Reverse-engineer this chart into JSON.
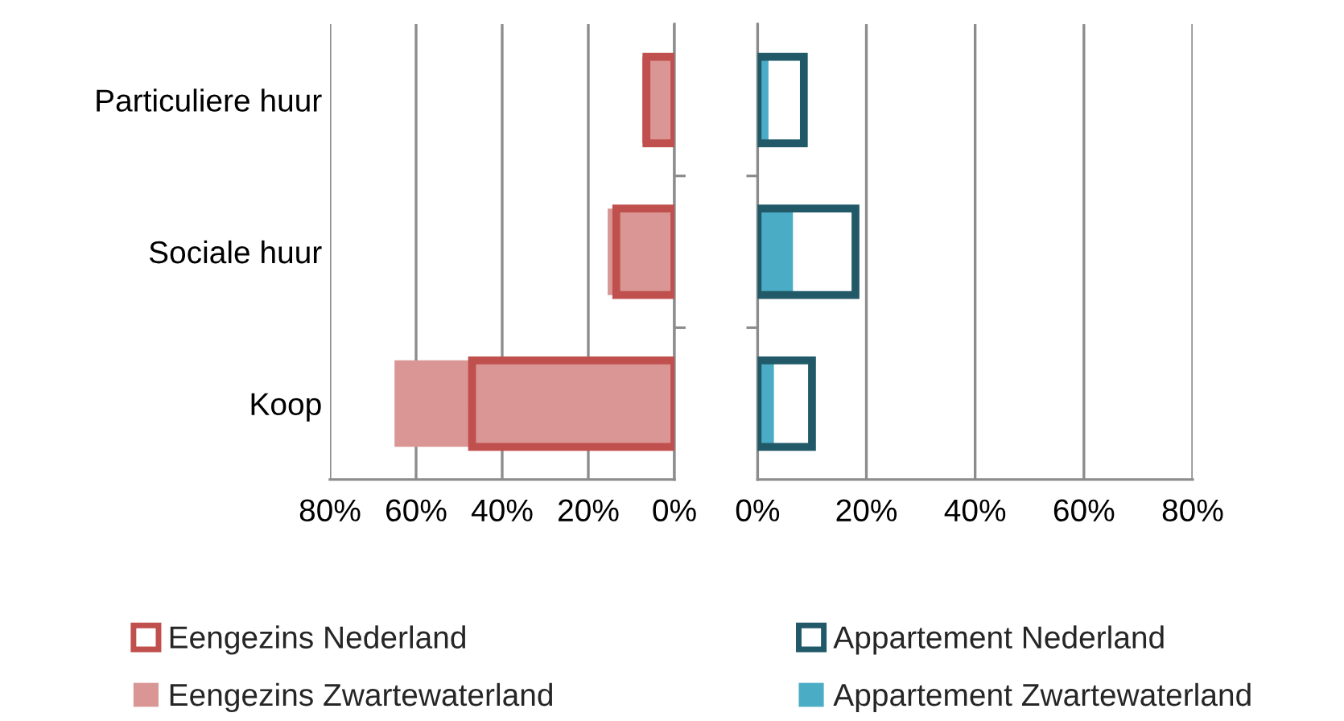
{
  "chart_data": [
    {
      "type": "bar",
      "orientation": "horizontal",
      "categories": [
        "Particuliere huur",
        "Sociale huur",
        "Koop"
      ],
      "series": [
        {
          "name": "Eengezins Nederland",
          "color": "#c0504d",
          "values": [
            6.5,
            13.5,
            47
          ]
        },
        {
          "name": "Eengezins Zwartewaterland",
          "color": "#d99694",
          "values": [
            7.5,
            15.5,
            65
          ]
        }
      ],
      "xlim": [
        80,
        0
      ],
      "xticks": [
        {
          "value": 80,
          "label": "80%"
        },
        {
          "value": 60,
          "label": "60%"
        },
        {
          "value": 40,
          "label": "40%"
        },
        {
          "value": 20,
          "label": "20%"
        },
        {
          "value": 0,
          "label": "0%"
        }
      ],
      "grid": "x",
      "legend": "bottom"
    },
    {
      "type": "bar",
      "orientation": "horizontal",
      "categories": [
        null,
        null,
        null
      ],
      "series": [
        {
          "name": "Appartement Nederland",
          "color": "#215968",
          "values": [
            8.5,
            18,
            10
          ]
        },
        {
          "name": "Appartement Zwartewaterland",
          "color": "#4bacc6",
          "values": [
            2,
            6.5,
            3
          ]
        }
      ],
      "xlim": [
        0,
        80
      ],
      "xticks": [
        {
          "value": 0,
          "label": "0%"
        },
        {
          "value": 20,
          "label": "20%"
        },
        {
          "value": 40,
          "label": "40%"
        },
        {
          "value": 60,
          "label": "60%"
        },
        {
          "value": 80,
          "label": "80%"
        }
      ],
      "grid": "x",
      "legend": "bottom",
      "tick_labels": "x"
    }
  ]
}
